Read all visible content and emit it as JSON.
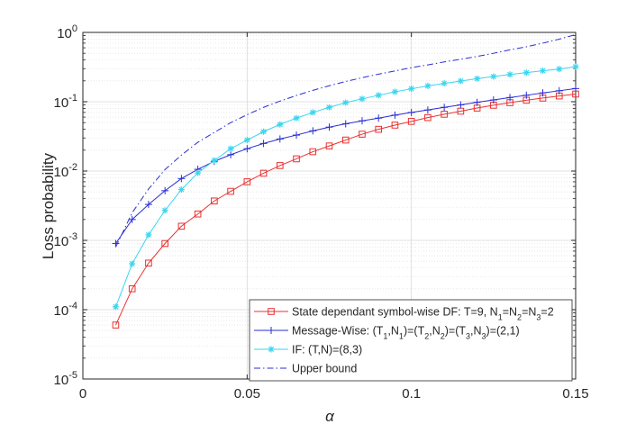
{
  "chart_data": {
    "type": "line",
    "title": "",
    "xlabel": "α",
    "ylabel": "Loss probability",
    "xlim": [
      0,
      0.15
    ],
    "ylim": [
      1e-05,
      1
    ],
    "yscale": "log",
    "grid": true,
    "minor_grid": true,
    "legend_placement": "bottom-right",
    "x_ticks": [
      {
        "value": 0,
        "label": "0"
      },
      {
        "value": 0.05,
        "label": "0.05"
      },
      {
        "value": 0.1,
        "label": "0.1"
      },
      {
        "value": 0.15,
        "label": "0.15"
      }
    ],
    "y_ticks": [
      {
        "value": 1,
        "base": "10",
        "exp": "0"
      },
      {
        "value": 0.1,
        "base": "10",
        "exp": "-1"
      },
      {
        "value": 0.01,
        "base": "10",
        "exp": "-2"
      },
      {
        "value": 0.001,
        "base": "10",
        "exp": "-3"
      },
      {
        "value": 0.0001,
        "base": "10",
        "exp": "-4"
      },
      {
        "value": 1e-05,
        "base": "10",
        "exp": "-5"
      }
    ],
    "x": [
      0.01,
      0.015,
      0.02,
      0.025,
      0.03,
      0.035,
      0.04,
      0.045,
      0.05,
      0.055,
      0.06,
      0.065,
      0.07,
      0.075,
      0.08,
      0.085,
      0.09,
      0.095,
      0.1,
      0.105,
      0.11,
      0.115,
      0.12,
      0.125,
      0.13,
      0.135,
      0.14,
      0.145,
      0.15
    ],
    "series": [
      {
        "key": "state-dependant",
        "color": "#e8312f",
        "marker": "square",
        "dash": "",
        "legend": [
          {
            "t": "State dependant symbol-wise DF: T=9, N"
          },
          {
            "t": "1",
            "sub": true
          },
          {
            "t": "=N"
          },
          {
            "t": "2",
            "sub": true
          },
          {
            "t": "=N"
          },
          {
            "t": "3",
            "sub": true
          },
          {
            "t": "=2"
          }
        ],
        "values": [
          6e-05,
          0.0002,
          0.00047,
          0.0009,
          0.0016,
          0.0024,
          0.0037,
          0.0051,
          0.007,
          0.0093,
          0.012,
          0.015,
          0.019,
          0.023,
          0.028,
          0.034,
          0.04,
          0.046,
          0.052,
          0.059,
          0.066,
          0.073,
          0.081,
          0.089,
          0.097,
          0.105,
          0.113,
          0.121,
          0.129
        ]
      },
      {
        "key": "message-wise",
        "color": "#2a2ed6",
        "marker": "plus",
        "dash": "",
        "legend": [
          {
            "t": "Message-Wise: (T"
          },
          {
            "t": "1",
            "sub": true
          },
          {
            "t": ",N"
          },
          {
            "t": "1",
            "sub": true
          },
          {
            "t": ")=(T"
          },
          {
            "t": "2",
            "sub": true
          },
          {
            "t": ",N"
          },
          {
            "t": "2",
            "sub": true
          },
          {
            "t": ")=(T"
          },
          {
            "t": "3",
            "sub": true
          },
          {
            "t": ",N"
          },
          {
            "t": "3",
            "sub": true
          },
          {
            "t": ")=(2,1)"
          }
        ],
        "values": [
          0.0009,
          0.002,
          0.0033,
          0.0052,
          0.0078,
          0.0106,
          0.0138,
          0.0172,
          0.021,
          0.025,
          0.029,
          0.033,
          0.038,
          0.043,
          0.048,
          0.053,
          0.058,
          0.064,
          0.07,
          0.076,
          0.083,
          0.09,
          0.098,
          0.106,
          0.115,
          0.124,
          0.134,
          0.144,
          0.155
        ]
      },
      {
        "key": "if",
        "color": "#3ad6f0",
        "marker": "star",
        "dash": "",
        "legend": [
          {
            "t": "IF: (T,N)=(8,3)"
          }
        ],
        "values": [
          0.00011,
          0.00046,
          0.0012,
          0.0027,
          0.0054,
          0.0094,
          0.0142,
          0.021,
          0.028,
          0.037,
          0.047,
          0.058,
          0.07,
          0.083,
          0.097,
          0.11,
          0.124,
          0.139,
          0.154,
          0.169,
          0.184,
          0.199,
          0.215,
          0.231,
          0.247,
          0.263,
          0.28,
          0.296,
          0.32
        ]
      },
      {
        "key": "upper-bound",
        "color": "#2a2ed6",
        "marker": "none",
        "dash": "7,3,1.5,3",
        "legend": [
          {
            "t": "Upper bound"
          }
        ],
        "values": [
          0.0008,
          0.0025,
          0.0055,
          0.0105,
          0.017,
          0.026,
          0.036,
          0.05,
          0.065,
          0.083,
          0.102,
          0.123,
          0.146,
          0.17,
          0.196,
          0.222,
          0.25,
          0.278,
          0.31,
          0.34,
          0.375,
          0.41,
          0.45,
          0.5,
          0.56,
          0.62,
          0.7,
          0.8,
          0.93
        ]
      }
    ]
  }
}
